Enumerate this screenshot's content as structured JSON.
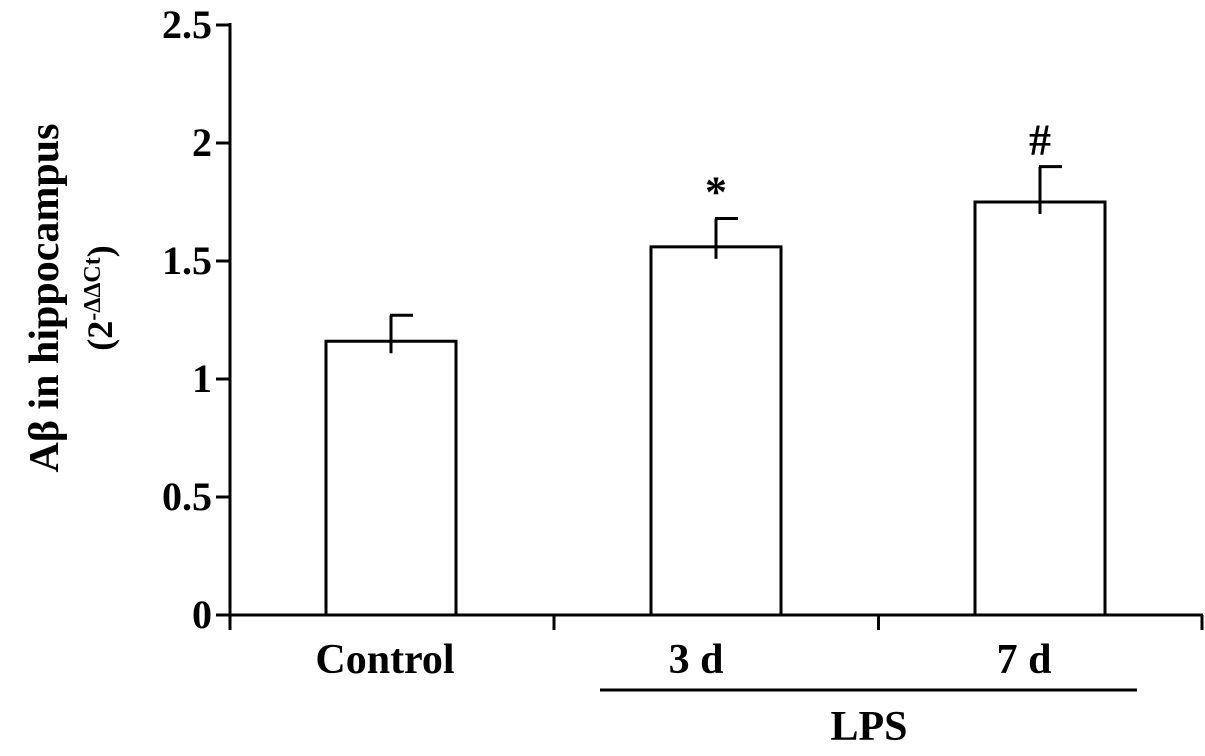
{
  "chart_data": {
    "type": "bar",
    "categories": [
      "Control",
      "3 d",
      "7 d"
    ],
    "values": [
      1.16,
      1.56,
      1.75
    ],
    "error_bars": [
      0.11,
      0.12,
      0.15
    ],
    "annotations": [
      "",
      "*",
      "#"
    ],
    "ylabel": {
      "main": "Aβ in hippocampus",
      "unit_base": "(2",
      "unit_exponent": "-ΔΔCt",
      "unit_close": ")"
    },
    "ylim": [
      0,
      2.5
    ],
    "yticks": [
      "0",
      "0.5",
      "1",
      "1.5",
      "2",
      "2.5"
    ],
    "group_label": "LPS",
    "grid": false,
    "legend": "none",
    "colors": {
      "bar_fill": "#ffffff",
      "stroke": "#000000"
    }
  }
}
